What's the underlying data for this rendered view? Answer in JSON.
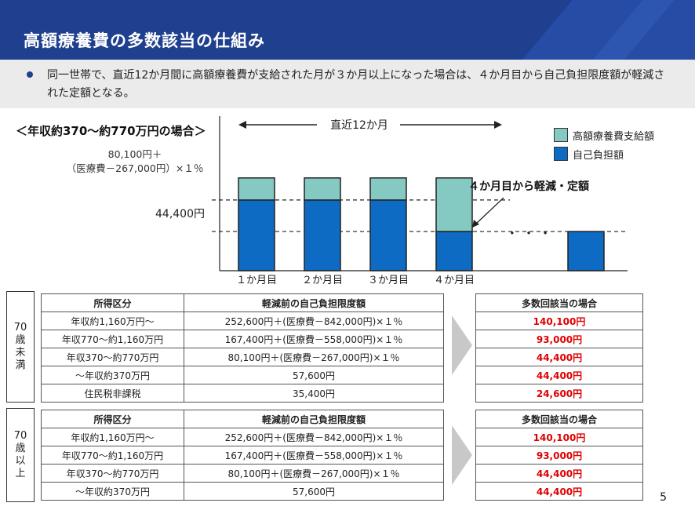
{
  "header": {
    "title": "高額療養費の多数該当の仕組み"
  },
  "summary": {
    "text": "同一世帯で、直近12か月間に高額療養費が支給された月が３か月以上になった場合は、４か月目から自己負担限度額が軽減された定額となる。"
  },
  "chart_data": {
    "type": "bar",
    "title": "",
    "condition_label": "＜年収約370～約770万円の場合＞",
    "categories": [
      "１か月目",
      "２か月目",
      "３か月目",
      "４か月目",
      ""
    ],
    "series": [
      {
        "name": "自己負担額",
        "color": "#0e6bc4",
        "values": [
          80100,
          80100,
          80100,
          44400,
          44400
        ]
      },
      {
        "name": "高額療養費支給額",
        "color": "#84c9c2",
        "values": [
          25000,
          25000,
          25000,
          60700,
          0
        ]
      }
    ],
    "reference_lines": [
      {
        "value": 80100,
        "label_line1": "80,100円＋",
        "label_line2": "（医療費－267,000円）×１％"
      },
      {
        "value": 44400,
        "label": "44,400円"
      }
    ],
    "period_label": "直近12か月",
    "annotation": "４か月目から軽減・定額",
    "ellipsis": "・ ・ ・",
    "ylim": [
      0,
      120000
    ]
  },
  "tables": {
    "under70": {
      "group_label": [
        "70",
        "歳",
        "未",
        "満"
      ],
      "headers": [
        "所得区分",
        "軽減前の自己負担限度額"
      ],
      "rows": [
        [
          "年収約1,160万円～",
          "252,600円＋(医療費－842,000円)×１％"
        ],
        [
          "年収770～約1,160万円",
          "167,400円＋(医療費－558,000円)×１％"
        ],
        [
          "年収370～約770万円",
          "80,100円＋(医療費－267,000円)×１％"
        ],
        [
          "～年収約370万円",
          "57,600円"
        ],
        [
          "住民税非課税",
          "35,400円"
        ]
      ],
      "result_header": "多数回該当の場合",
      "results": [
        "140,100円",
        "93,000円",
        "44,400円",
        "44,400円",
        "24,600円"
      ]
    },
    "over70": {
      "group_label": [
        "70",
        "歳",
        "以",
        "上"
      ],
      "headers": [
        "所得区分",
        "軽減前の自己負担限度額"
      ],
      "rows": [
        [
          "年収約1,160万円～",
          "252,600円＋(医療費－842,000円)×１％"
        ],
        [
          "年収770～約1,160万円",
          "167,400円＋(医療費－558,000円)×１％"
        ],
        [
          "年収370～約770万円",
          "80,100円＋(医療費－267,000円)×１％"
        ],
        [
          "～年収約370万円",
          "57,600円"
        ]
      ],
      "result_header": "多数回該当の場合",
      "results": [
        "140,100円",
        "93,000円",
        "44,400円",
        "44,400円"
      ]
    }
  },
  "page_number": "5"
}
